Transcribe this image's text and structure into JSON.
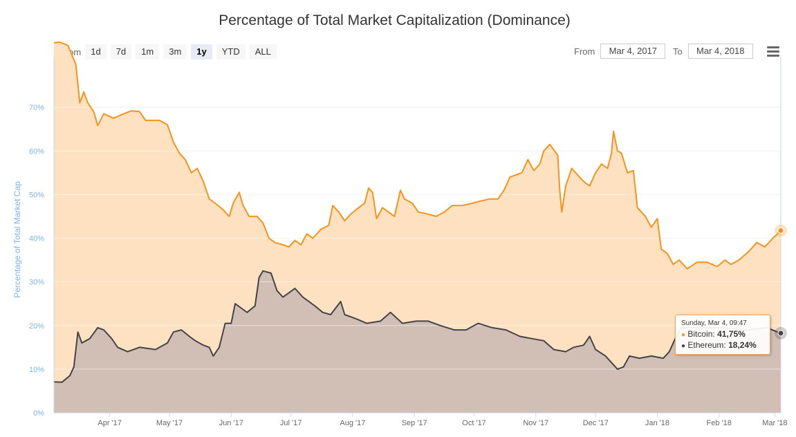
{
  "title": "Percentage of Total Market Capitalization (Dominance)",
  "zoom": {
    "label": "Zoom",
    "buttons": [
      "1d",
      "7d",
      "1m",
      "3m",
      "1y",
      "YTD",
      "ALL"
    ],
    "active": "1y"
  },
  "range": {
    "from_label": "From",
    "from_value": "Mar 4, 2017",
    "to_label": "To",
    "to_value": "Mar 4, 2018"
  },
  "tooltip": {
    "date": "Sunday, Mar 4, 09:47",
    "bitcoin_label": "Bitcoin",
    "bitcoin_value": "41,75%",
    "ethereum_label": "Ethereum",
    "ethereum_value": "18,24%"
  },
  "colors": {
    "bitcoin": "#f7931a",
    "bitcoin_area": "#fde1c0",
    "ethereum": "#434348",
    "ethereum_area": "#cfbcb4",
    "axis_label": "#7cb5ec"
  },
  "chart_data": {
    "type": "area",
    "title": "Percentage of Total Market Capitalization (Dominance)",
    "ylabel": "Percentage of Total Market Cap",
    "ylim": [
      0,
      80
    ],
    "yticks": [
      "0%",
      "10%",
      "20%",
      "30%",
      "40%",
      "50%",
      "60%",
      "70%"
    ],
    "xlim": [
      "2017-03-04",
      "2018-03-04"
    ],
    "xticks": [
      {
        "date": "2017-04-01",
        "label": "Apr '17"
      },
      {
        "date": "2017-05-01",
        "label": "May '17"
      },
      {
        "date": "2017-06-01",
        "label": "Jun '17"
      },
      {
        "date": "2017-07-01",
        "label": "Jul '17"
      },
      {
        "date": "2017-08-01",
        "label": "Aug '17"
      },
      {
        "date": "2017-09-01",
        "label": "Sep '17"
      },
      {
        "date": "2017-10-01",
        "label": "Oct '17"
      },
      {
        "date": "2017-11-01",
        "label": "Nov '17"
      },
      {
        "date": "2017-12-01",
        "label": "Dec '17"
      },
      {
        "date": "2018-01-01",
        "label": "Jan '18"
      },
      {
        "date": "2018-02-01",
        "label": "Feb '18"
      },
      {
        "date": "2018-03-01",
        "label": "Mar '18"
      }
    ],
    "grid": true,
    "series": [
      {
        "name": "Bitcoin",
        "points": [
          [
            "2017-03-04",
            84.8
          ],
          [
            "2017-03-07",
            84.9
          ],
          [
            "2017-03-11",
            84.2
          ],
          [
            "2017-03-15",
            79.8
          ],
          [
            "2017-03-17",
            71.0
          ],
          [
            "2017-03-19",
            73.5
          ],
          [
            "2017-03-21",
            71.0
          ],
          [
            "2017-03-24",
            69.0
          ],
          [
            "2017-03-26",
            65.8
          ],
          [
            "2017-03-29",
            68.5
          ],
          [
            "2017-04-03",
            67.5
          ],
          [
            "2017-04-08",
            68.5
          ],
          [
            "2017-04-12",
            69.2
          ],
          [
            "2017-04-16",
            69.0
          ],
          [
            "2017-04-19",
            67.0
          ],
          [
            "2017-04-26",
            67.0
          ],
          [
            "2017-04-30",
            66.0
          ],
          [
            "2017-05-03",
            62.0
          ],
          [
            "2017-05-06",
            59.5
          ],
          [
            "2017-05-09",
            58.0
          ],
          [
            "2017-05-12",
            55.0
          ],
          [
            "2017-05-15",
            56.0
          ],
          [
            "2017-05-18",
            53.0
          ],
          [
            "2017-05-21",
            49.0
          ],
          [
            "2017-05-24",
            48.0
          ],
          [
            "2017-05-28",
            46.5
          ],
          [
            "2017-05-31",
            45.0
          ],
          [
            "2017-06-02",
            48.0
          ],
          [
            "2017-06-05",
            50.5
          ],
          [
            "2017-06-07",
            47.5
          ],
          [
            "2017-06-10",
            45.0
          ],
          [
            "2017-06-14",
            45.0
          ],
          [
            "2017-06-17",
            43.5
          ],
          [
            "2017-06-20",
            40.0
          ],
          [
            "2017-06-23",
            39.0
          ],
          [
            "2017-06-27",
            38.5
          ],
          [
            "2017-06-30",
            38.0
          ],
          [
            "2017-07-03",
            39.5
          ],
          [
            "2017-07-06",
            38.5
          ],
          [
            "2017-07-09",
            41.0
          ],
          [
            "2017-07-12",
            40.0
          ],
          [
            "2017-07-16",
            42.0
          ],
          [
            "2017-07-20",
            43.0
          ],
          [
            "2017-07-22",
            47.5
          ],
          [
            "2017-07-25",
            46.0
          ],
          [
            "2017-07-28",
            44.0
          ],
          [
            "2017-07-31",
            45.5
          ],
          [
            "2017-08-04",
            47.0
          ],
          [
            "2017-08-07",
            48.0
          ],
          [
            "2017-08-09",
            51.5
          ],
          [
            "2017-08-11",
            50.5
          ],
          [
            "2017-08-13",
            44.5
          ],
          [
            "2017-08-16",
            47.0
          ],
          [
            "2017-08-19",
            46.0
          ],
          [
            "2017-08-22",
            45.0
          ],
          [
            "2017-08-25",
            51.0
          ],
          [
            "2017-08-27",
            49.0
          ],
          [
            "2017-08-31",
            48.0
          ],
          [
            "2017-09-03",
            46.0
          ],
          [
            "2017-09-08",
            45.5
          ],
          [
            "2017-09-12",
            45.0
          ],
          [
            "2017-09-16",
            46.0
          ],
          [
            "2017-09-20",
            47.5
          ],
          [
            "2017-09-25",
            47.5
          ],
          [
            "2017-09-30",
            48.0
          ],
          [
            "2017-10-04",
            48.5
          ],
          [
            "2017-10-09",
            49.0
          ],
          [
            "2017-10-13",
            49.0
          ],
          [
            "2017-10-16",
            51.0
          ],
          [
            "2017-10-19",
            54.0
          ],
          [
            "2017-10-22",
            54.5
          ],
          [
            "2017-10-25",
            55.0
          ],
          [
            "2017-10-28",
            58.0
          ],
          [
            "2017-10-31",
            55.5
          ],
          [
            "2017-11-03",
            57.0
          ],
          [
            "2017-11-05",
            60.0
          ],
          [
            "2017-11-08",
            61.5
          ],
          [
            "2017-11-12",
            59.0
          ],
          [
            "2017-11-13",
            51.0
          ],
          [
            "2017-11-14",
            46.0
          ],
          [
            "2017-11-16",
            52.0
          ],
          [
            "2017-11-19",
            56.0
          ],
          [
            "2017-11-22",
            54.5
          ],
          [
            "2017-11-25",
            53.0
          ],
          [
            "2017-11-28",
            52.0
          ],
          [
            "2017-12-01",
            55.0
          ],
          [
            "2017-12-04",
            57.0
          ],
          [
            "2017-12-07",
            56.0
          ],
          [
            "2017-12-09",
            59.5
          ],
          [
            "2017-12-10",
            64.5
          ],
          [
            "2017-12-12",
            60.0
          ],
          [
            "2017-12-14",
            59.5
          ],
          [
            "2017-12-17",
            55.0
          ],
          [
            "2017-12-20",
            55.5
          ],
          [
            "2017-12-22",
            47.0
          ],
          [
            "2017-12-26",
            45.0
          ],
          [
            "2017-12-29",
            42.5
          ],
          [
            "2018-01-01",
            44.5
          ],
          [
            "2018-01-03",
            37.5
          ],
          [
            "2018-01-06",
            36.5
          ],
          [
            "2018-01-09",
            34.0
          ],
          [
            "2018-01-12",
            35.0
          ],
          [
            "2018-01-16",
            33.0
          ],
          [
            "2018-01-21",
            34.5
          ],
          [
            "2018-01-26",
            34.5
          ],
          [
            "2018-01-31",
            33.5
          ],
          [
            "2018-02-04",
            35.0
          ],
          [
            "2018-02-07",
            34.0
          ],
          [
            "2018-02-11",
            35.0
          ],
          [
            "2018-02-16",
            37.0
          ],
          [
            "2018-02-20",
            39.0
          ],
          [
            "2018-02-24",
            38.0
          ],
          [
            "2018-02-28",
            40.0
          ],
          [
            "2018-03-04",
            41.75
          ]
        ]
      },
      {
        "name": "Ethereum",
        "points": [
          [
            "2017-03-04",
            7.1
          ],
          [
            "2017-03-08",
            7.0
          ],
          [
            "2017-03-12",
            8.5
          ],
          [
            "2017-03-14",
            10.5
          ],
          [
            "2017-03-16",
            18.5
          ],
          [
            "2017-03-18",
            16.0
          ],
          [
            "2017-03-22",
            17.0
          ],
          [
            "2017-03-26",
            19.5
          ],
          [
            "2017-03-29",
            19.0
          ],
          [
            "2017-04-02",
            17.0
          ],
          [
            "2017-04-05",
            15.0
          ],
          [
            "2017-04-10",
            14.0
          ],
          [
            "2017-04-16",
            15.0
          ],
          [
            "2017-04-24",
            14.5
          ],
          [
            "2017-04-30",
            16.0
          ],
          [
            "2017-05-03",
            18.5
          ],
          [
            "2017-05-07",
            19.0
          ],
          [
            "2017-05-11",
            17.5
          ],
          [
            "2017-05-14",
            16.5
          ],
          [
            "2017-05-18",
            15.5
          ],
          [
            "2017-05-21",
            15.0
          ],
          [
            "2017-05-23",
            13.0
          ],
          [
            "2017-05-26",
            15.0
          ],
          [
            "2017-05-29",
            20.5
          ],
          [
            "2017-06-01",
            20.5
          ],
          [
            "2017-06-03",
            25.0
          ],
          [
            "2017-06-06",
            24.0
          ],
          [
            "2017-06-09",
            23.0
          ],
          [
            "2017-06-13",
            24.5
          ],
          [
            "2017-06-15",
            31.0
          ],
          [
            "2017-06-17",
            32.5
          ],
          [
            "2017-06-21",
            32.0
          ],
          [
            "2017-06-24",
            28.0
          ],
          [
            "2017-06-27",
            26.5
          ],
          [
            "2017-06-30",
            27.5
          ],
          [
            "2017-07-03",
            28.5
          ],
          [
            "2017-07-07",
            26.5
          ],
          [
            "2017-07-13",
            24.5
          ],
          [
            "2017-07-17",
            23.0
          ],
          [
            "2017-07-21",
            22.5
          ],
          [
            "2017-07-26",
            25.5
          ],
          [
            "2017-07-28",
            22.5
          ],
          [
            "2017-08-03",
            21.5
          ],
          [
            "2017-08-08",
            20.5
          ],
          [
            "2017-08-15",
            21.0
          ],
          [
            "2017-08-20",
            23.0
          ],
          [
            "2017-08-26",
            20.5
          ],
          [
            "2017-09-02",
            21.0
          ],
          [
            "2017-09-08",
            21.0
          ],
          [
            "2017-09-14",
            20.0
          ],
          [
            "2017-09-21",
            19.0
          ],
          [
            "2017-09-27",
            19.0
          ],
          [
            "2017-10-03",
            20.5
          ],
          [
            "2017-10-10",
            19.5
          ],
          [
            "2017-10-17",
            19.0
          ],
          [
            "2017-10-24",
            17.5
          ],
          [
            "2017-10-30",
            17.0
          ],
          [
            "2017-11-05",
            16.5
          ],
          [
            "2017-11-10",
            14.5
          ],
          [
            "2017-11-16",
            14.0
          ],
          [
            "2017-11-20",
            15.0
          ],
          [
            "2017-11-25",
            15.5
          ],
          [
            "2017-11-28",
            17.5
          ],
          [
            "2017-12-01",
            14.5
          ],
          [
            "2017-12-06",
            13.0
          ],
          [
            "2017-12-10",
            11.0
          ],
          [
            "2017-12-12",
            10.0
          ],
          [
            "2017-12-15",
            10.5
          ],
          [
            "2017-12-18",
            13.0
          ],
          [
            "2017-12-23",
            12.5
          ],
          [
            "2017-12-29",
            13.0
          ],
          [
            "2018-01-04",
            12.5
          ],
          [
            "2018-01-07",
            14.0
          ],
          [
            "2018-01-10",
            17.0
          ],
          [
            "2018-01-13",
            19.5
          ],
          [
            "2018-01-20",
            19.5
          ],
          [
            "2018-02-01",
            19.5
          ],
          [
            "2018-02-15",
            19.0
          ],
          [
            "2018-02-25",
            19.5
          ],
          [
            "2018-03-04",
            18.24
          ]
        ]
      }
    ]
  }
}
